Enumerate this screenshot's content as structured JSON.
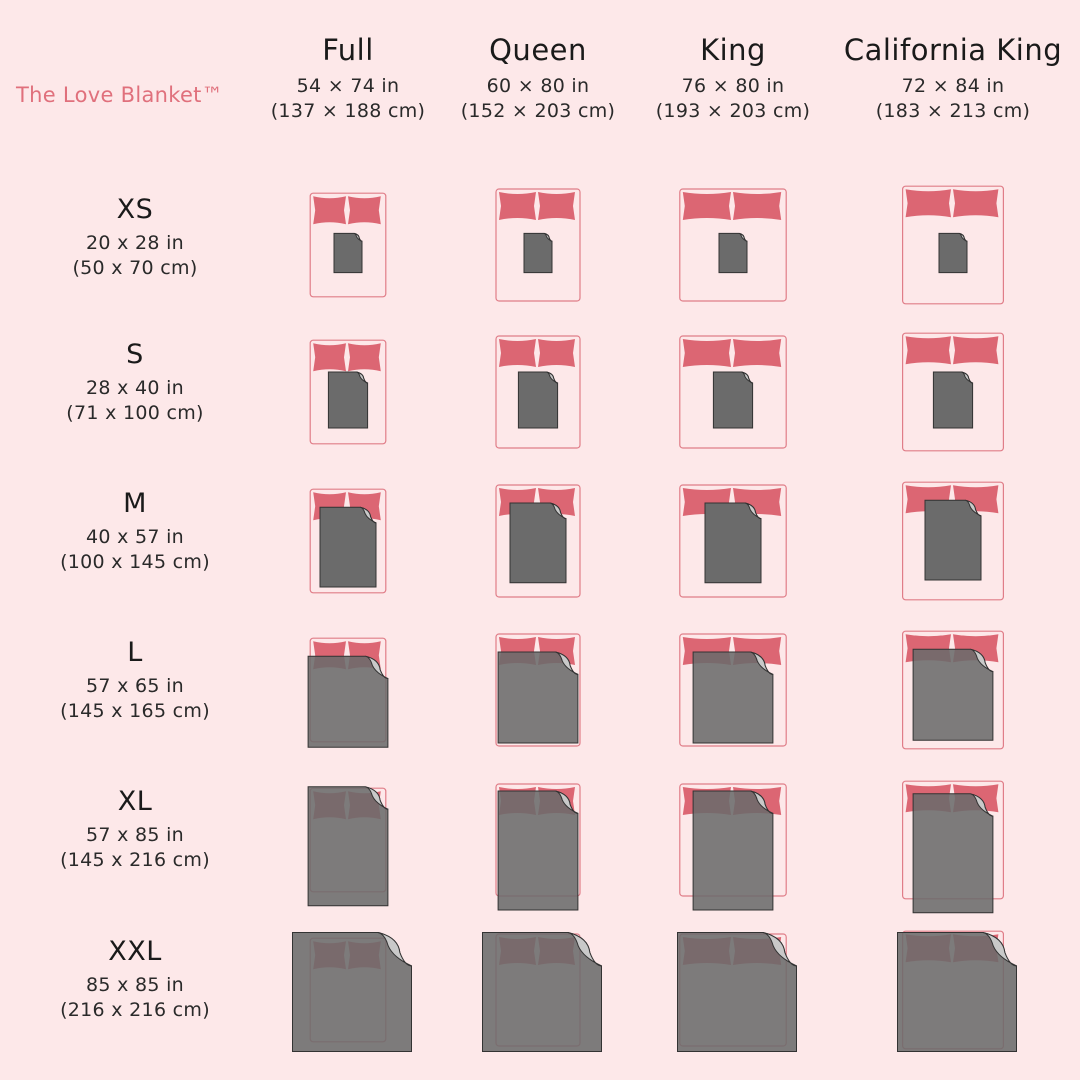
{
  "brand": "The Love Blanket™",
  "beds": [
    {
      "name": "Full",
      "dim_in": "54 × 74 in",
      "dim_cm": "(137 × 188 cm)",
      "w": 54,
      "l": 74
    },
    {
      "name": "Queen",
      "dim_in": "60 × 80 in",
      "dim_cm": "(152 × 203 cm)",
      "w": 60,
      "l": 80
    },
    {
      "name": "King",
      "dim_in": "76 × 80 in",
      "dim_cm": "(193 × 203 cm)",
      "w": 76,
      "l": 80
    },
    {
      "name": "California King",
      "dim_in": "72 × 84 in",
      "dim_cm": "(183 × 213 cm)",
      "w": 72,
      "l": 84
    }
  ],
  "blankets": [
    {
      "name": "XS",
      "dim_in": "20 x 28 in",
      "dim_cm": "(50 x 70 cm)",
      "w": 20,
      "l": 28
    },
    {
      "name": "S",
      "dim_in": "28 x 40 in",
      "dim_cm": "(71 x 100 cm)",
      "w": 28,
      "l": 40
    },
    {
      "name": "M",
      "dim_in": "40 x 57 in",
      "dim_cm": "(100 x 145 cm)",
      "w": 40,
      "l": 57
    },
    {
      "name": "L",
      "dim_in": "57 x 65 in",
      "dim_cm": "(145 x 165 cm)",
      "w": 57,
      "l": 65
    },
    {
      "name": "XL",
      "dim_in": "57 x 85 in",
      "dim_cm": "(145 x 216 cm)",
      "w": 57,
      "l": 85
    },
    {
      "name": "XXL",
      "dim_in": "85 x 85 in",
      "dim_cm": "(216 x 216 cm)",
      "w": 85,
      "l": 85
    }
  ],
  "colors": {
    "background": "#fde8e9",
    "accent": "#e0707c",
    "pillow": "#dc6673",
    "bed_outline": "#e07d88",
    "blanket": "#6b6b6b",
    "blanket_fold": "#c9c9c9"
  }
}
